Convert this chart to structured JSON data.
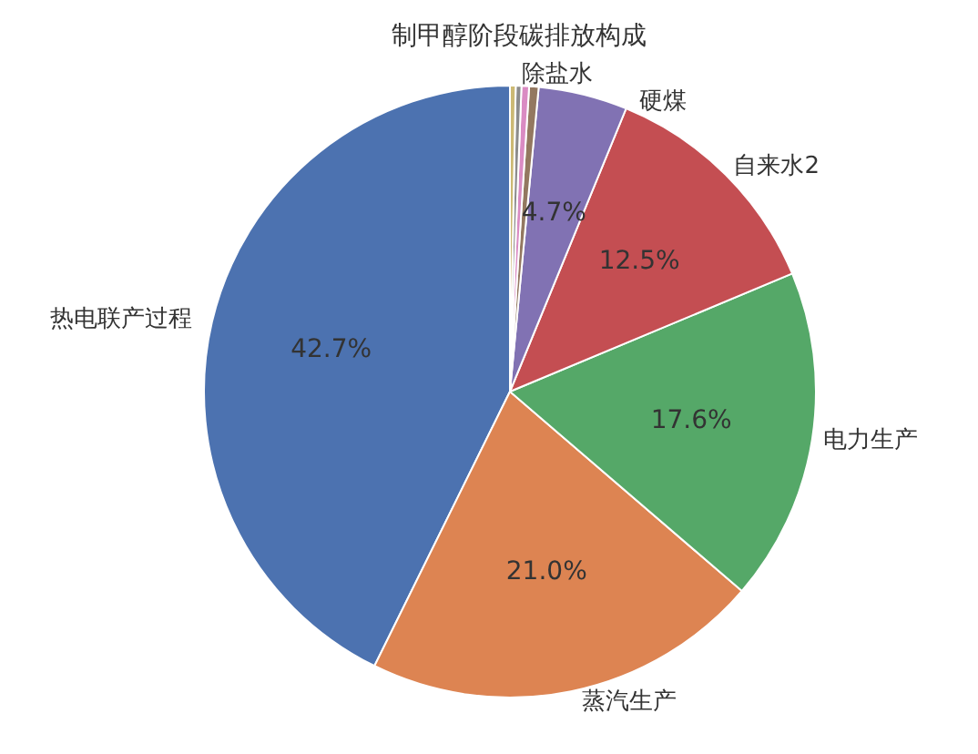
{
  "chart_data": {
    "type": "pie",
    "title": "制甲醇阶段碳排放构成",
    "categories": [
      "热电联产过程",
      "蒸汽生产",
      "电力生产",
      "自来水2",
      "硬煤",
      null,
      null,
      null,
      "除盐水"
    ],
    "values": [
      42.7,
      21.0,
      17.6,
      12.5,
      4.7,
      0.5,
      0.4,
      0.3,
      0.3
    ],
    "colors": [
      "#4c72b0",
      "#dd8452",
      "#55a868",
      "#c44e52",
      "#8172b3",
      "#937860",
      "#da8bc3",
      "#8c8c8c",
      "#ccb974"
    ],
    "value_labels": [
      "42.7%",
      "21.0%",
      "17.6%",
      "12.5%",
      "4.7%",
      null,
      null,
      null,
      null
    ]
  }
}
